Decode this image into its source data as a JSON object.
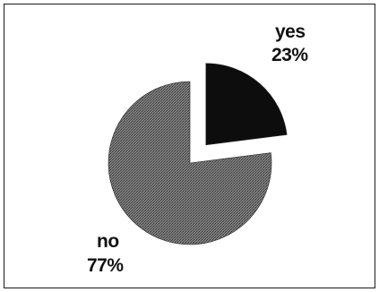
{
  "chart_data": {
    "type": "pie",
    "slices": [
      {
        "label": "yes",
        "value": 23,
        "value_label": "23%",
        "color": "#0d0d0d",
        "exploded": true
      },
      {
        "label": "no",
        "value": 77,
        "value_label": "77%",
        "color": "#6a6a6a",
        "exploded": false
      }
    ],
    "title": "",
    "legend": "none"
  }
}
